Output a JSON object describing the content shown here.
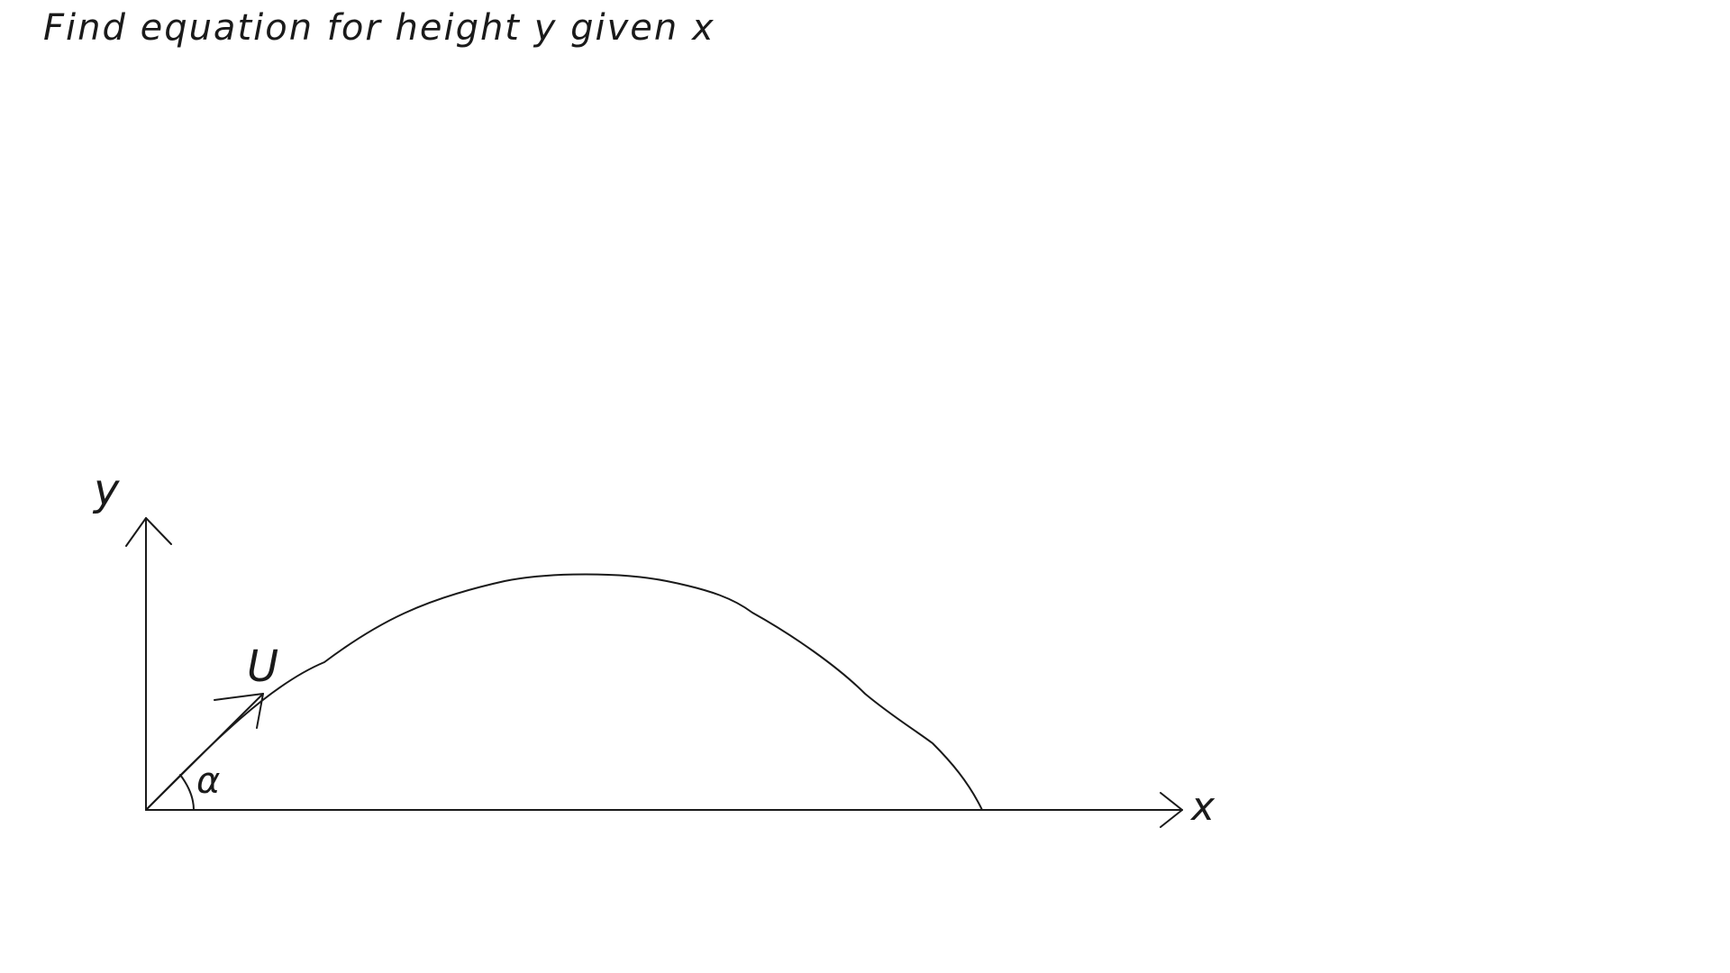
{
  "question": {
    "text": "Find equation for height y given x"
  },
  "diagram": {
    "y_axis_label": "y",
    "x_axis_label": "x",
    "velocity_label": "U",
    "angle_label": "α"
  },
  "colors": {
    "ink": "#1a1a1a",
    "background": "#ffffff"
  }
}
